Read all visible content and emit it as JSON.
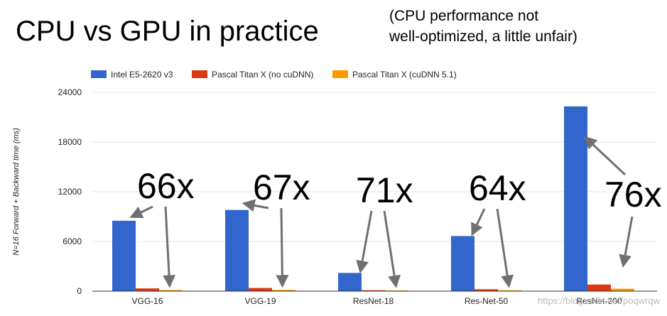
{
  "title": "CPU vs GPU in practice",
  "subtitle_lines": [
    "(CPU performance not",
    "well-optimized, a little unfair)"
  ],
  "watermark": "https://blog.csdn.net/poqwrqw",
  "colors": {
    "cpu": "#3366cc",
    "gpu_nocudnn": "#dc3912",
    "gpu_cudnn": "#ff9900",
    "arrow": "#707070",
    "grid": "#e6e6e6"
  },
  "chart_data": {
    "type": "bar",
    "categories": [
      "VGG-16",
      "VGG-19",
      "ResNet-18",
      "Res-Net-50",
      "ResNet-200"
    ],
    "series": [
      {
        "name": "Intel E5-2620 v3",
        "values": [
          8500,
          9800,
          2200,
          6650,
          22300
        ]
      },
      {
        "name": "Pascal Titan X (no cuDNN)",
        "values": [
          330,
          380,
          110,
          230,
          800
        ]
      },
      {
        "name": "Pascal Titan X (cuDNN 5.1)",
        "values": [
          130,
          150,
          30,
          105,
          290
        ]
      }
    ],
    "ylabel": "N=16 Forward + Backward time (ms)",
    "ylim": [
      0,
      24000
    ],
    "yticks": [
      "0",
      "6000",
      "12000",
      "18000",
      "24000"
    ],
    "grid": true,
    "legend_position": "top",
    "annotations": [
      "66x",
      "67x",
      "71x",
      "64x",
      "76x"
    ]
  }
}
